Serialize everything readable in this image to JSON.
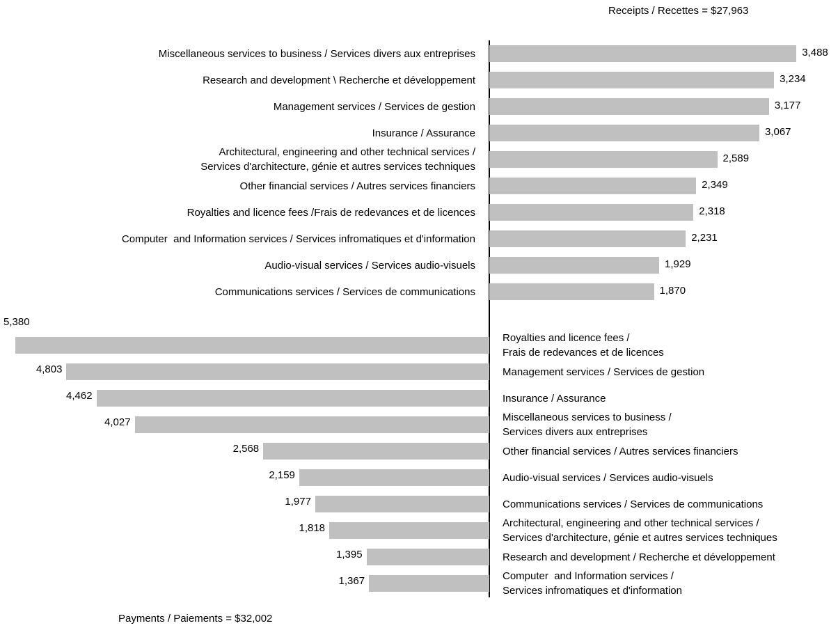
{
  "chart_data": [
    {
      "type": "barh",
      "title": "Receipts / Recettes = $27,963",
      "color": "#c0c0c0",
      "categories": [
        "Miscellaneous services to business / Services divers aux entreprises",
        "Research and development \\ Recherche et développement",
        "Management services / Services de gestion",
        "Insurance / Assurance",
        "Architectural, engineering and other technical services /\nServices d'architecture, génie et autres services techniques",
        "Other financial services / Autres services financiers",
        "Royalties and licence fees /Frais de redevances et de licences",
        "Computer  and Information services / Services infromatiques et d'information",
        "Audio-visual services / Services audio-visuels",
        "Communications services / Services de communications"
      ],
      "values": [
        3488,
        3234,
        3177,
        3067,
        2589,
        2349,
        2318,
        2231,
        1929,
        1870
      ],
      "value_labels": [
        "3,488",
        "3,234",
        "3,177",
        "3,067",
        "2,589",
        "2,349",
        "2,318",
        "2,231",
        "1,929",
        "1,870"
      ]
    },
    {
      "type": "barh",
      "title": "Payments / Paiements = $32,002",
      "color": "#c0c0c0",
      "categories": [
        "Royalties and licence fees /\nFrais de redevances et de licences",
        "Management services / Services de gestion",
        "Insurance / Assurance",
        "Miscellaneous services to business /\nServices divers aux entreprises",
        "Other financial services / Autres services financiers",
        "Audio-visual services / Services audio-visuels",
        "Communications services / Services de communications",
        "Architectural, engineering and other technical services /\nServices d'architecture, génie et autres services techniques",
        "Research and development / Recherche et développement",
        "Computer  and Information services /\nServices infromatiques et d'information"
      ],
      "values": [
        5380,
        4803,
        4462,
        4027,
        2568,
        2159,
        1977,
        1818,
        1395,
        1367
      ],
      "value_labels": [
        "5,380",
        "4,803",
        "4,462",
        "4,027",
        "2,568",
        "2,159",
        "1,977",
        "1,818",
        "1,395",
        "1,367"
      ]
    }
  ]
}
